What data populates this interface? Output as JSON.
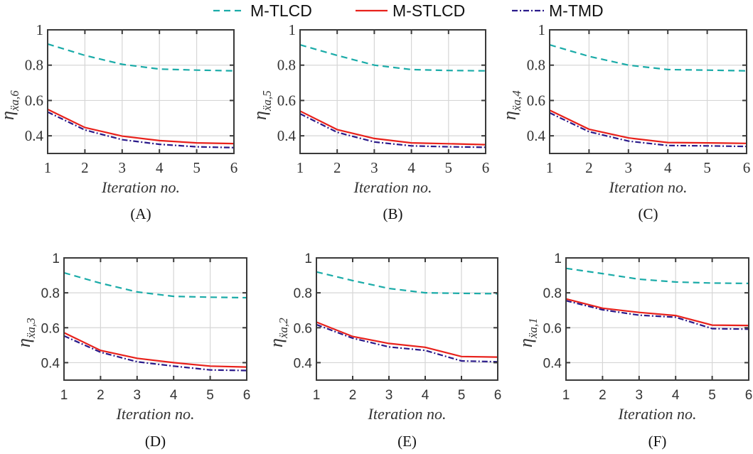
{
  "chart_data": {
    "type": "line",
    "legend": {
      "placement": "top-center",
      "entries": [
        {
          "name": "M-TLCD",
          "color": "#1aaba8",
          "style": "dashed"
        },
        {
          "name": "M-STLCD",
          "color": "#e8211b",
          "style": "solid"
        },
        {
          "name": "M-TMD",
          "color": "#2a1a8a",
          "style": "dashdot"
        }
      ]
    },
    "panels": [
      {
        "label": "(A)",
        "ylabel": "η",
        "ylabel_sub": "ẍa,6",
        "xlabel": "Iteration no.",
        "x": [
          1,
          2,
          3,
          4,
          5,
          6
        ],
        "xlim": [
          1,
          6
        ],
        "ylim": [
          0.3,
          1
        ],
        "yticks": [
          0.4,
          0.6,
          0.8,
          1
        ],
        "ytick_labels": [
          "0.4",
          "0.6",
          "0.8",
          "1"
        ],
        "xtick_labels": [
          "1",
          "2",
          "3",
          "4",
          "5",
          "6"
        ],
        "series": [
          {
            "name": "M-TLCD",
            "values": [
              0.92,
              0.855,
              0.805,
              0.778,
              0.772,
              0.768
            ]
          },
          {
            "name": "M-STLCD",
            "values": [
              0.55,
              0.447,
              0.398,
              0.373,
              0.36,
              0.356
            ]
          },
          {
            "name": "M-TMD",
            "values": [
              0.535,
              0.433,
              0.378,
              0.352,
              0.338,
              0.333
            ]
          }
        ]
      },
      {
        "label": "(B)",
        "ylabel": "η",
        "ylabel_sub": "ẍa,5",
        "xlabel": "Iteration no.",
        "x": [
          1,
          2,
          3,
          4,
          5,
          6
        ],
        "xlim": [
          1,
          6
        ],
        "ylim": [
          0.3,
          1
        ],
        "yticks": [
          0.4,
          0.6,
          0.8,
          1
        ],
        "ytick_labels": [
          "0.4",
          "0.6",
          "0.8",
          "1"
        ],
        "xtick_labels": [
          "1",
          "2",
          "3",
          "4",
          "5",
          "6"
        ],
        "series": [
          {
            "name": "M-TLCD",
            "values": [
              0.915,
              0.855,
              0.8,
              0.775,
              0.77,
              0.768
            ]
          },
          {
            "name": "M-STLCD",
            "values": [
              0.54,
              0.435,
              0.385,
              0.36,
              0.355,
              0.35
            ]
          },
          {
            "name": "M-TMD",
            "values": [
              0.525,
              0.42,
              0.365,
              0.343,
              0.338,
              0.335
            ]
          }
        ]
      },
      {
        "label": "(C)",
        "ylabel": "η",
        "ylabel_sub": "ẍa,4",
        "xlabel": "Iteration no.",
        "x": [
          1,
          2,
          3,
          4,
          5,
          6
        ],
        "xlim": [
          1,
          6
        ],
        "ylim": [
          0.3,
          1
        ],
        "yticks": [
          0.4,
          0.6,
          0.8,
          1
        ],
        "ytick_labels": [
          "0.4",
          "0.6",
          "0.8",
          "1"
        ],
        "xtick_labels": [
          "1",
          "2",
          "3",
          "4",
          "5",
          "6"
        ],
        "series": [
          {
            "name": "M-TLCD",
            "values": [
              0.915,
              0.85,
              0.8,
              0.775,
              0.772,
              0.768
            ]
          },
          {
            "name": "M-STLCD",
            "values": [
              0.545,
              0.437,
              0.388,
              0.362,
              0.36,
              0.357
            ]
          },
          {
            "name": "M-TMD",
            "values": [
              0.53,
              0.423,
              0.37,
              0.345,
              0.343,
              0.34
            ]
          }
        ]
      },
      {
        "label": "(D)",
        "ylabel": "η",
        "ylabel_sub": "ẍa,3",
        "xlabel": "Iteration no.",
        "x": [
          1,
          2,
          3,
          4,
          5,
          6
        ],
        "xlim": [
          1,
          6
        ],
        "ylim": [
          0.3,
          1
        ],
        "yticks": [
          0.4,
          0.6,
          0.8,
          1
        ],
        "ytick_labels": [
          "0.4",
          "0.6",
          "0.8",
          "1"
        ],
        "xtick_labels": [
          "1",
          "2",
          "3",
          "4",
          "5",
          "6"
        ],
        "series": [
          {
            "name": "M-TLCD",
            "values": [
              0.915,
              0.855,
              0.805,
              0.78,
              0.775,
              0.772
            ]
          },
          {
            "name": "M-STLCD",
            "values": [
              0.572,
              0.47,
              0.425,
              0.4,
              0.38,
              0.375
            ]
          },
          {
            "name": "M-TMD",
            "values": [
              0.553,
              0.46,
              0.405,
              0.38,
              0.358,
              0.355
            ]
          }
        ]
      },
      {
        "label": "(E)",
        "ylabel": "η",
        "ylabel_sub": "ẍa,2",
        "xlabel": "Iteration no.",
        "x": [
          1,
          2,
          3,
          4,
          5,
          6
        ],
        "xlim": [
          1,
          6
        ],
        "ylim": [
          0.3,
          1
        ],
        "yticks": [
          0.4,
          0.6,
          0.8,
          1
        ],
        "ytick_labels": [
          "0.4",
          "0.6",
          "0.8",
          "1"
        ],
        "xtick_labels": [
          "1",
          "2",
          "3",
          "4",
          "5",
          "6"
        ],
        "series": [
          {
            "name": "M-TLCD",
            "values": [
              0.92,
              0.87,
              0.825,
              0.8,
              0.797,
              0.795
            ]
          },
          {
            "name": "M-STLCD",
            "values": [
              0.632,
              0.55,
              0.51,
              0.488,
              0.435,
              0.432
            ]
          },
          {
            "name": "M-TMD",
            "values": [
              0.618,
              0.54,
              0.49,
              0.47,
              0.41,
              0.405
            ]
          }
        ]
      },
      {
        "label": "(F)",
        "ylabel": "η",
        "ylabel_sub": "ẍa,1",
        "xlabel": "Iteration no.",
        "x": [
          1,
          2,
          3,
          4,
          5,
          6
        ],
        "xlim": [
          1,
          6
        ],
        "ylim": [
          0.3,
          1
        ],
        "yticks": [
          0.4,
          0.6,
          0.8,
          1
        ],
        "ytick_labels": [
          "0.4",
          "0.6",
          "0.8",
          "1"
        ],
        "xtick_labels": [
          "1",
          "2",
          "3",
          "4",
          "5",
          "6"
        ],
        "series": [
          {
            "name": "M-TLCD",
            "values": [
              0.94,
              0.91,
              0.878,
              0.862,
              0.856,
              0.854
            ]
          },
          {
            "name": "M-STLCD",
            "values": [
              0.765,
              0.712,
              0.688,
              0.67,
              0.615,
              0.613
            ]
          },
          {
            "name": "M-TMD",
            "values": [
              0.755,
              0.703,
              0.672,
              0.66,
              0.595,
              0.592
            ]
          }
        ]
      }
    ]
  }
}
